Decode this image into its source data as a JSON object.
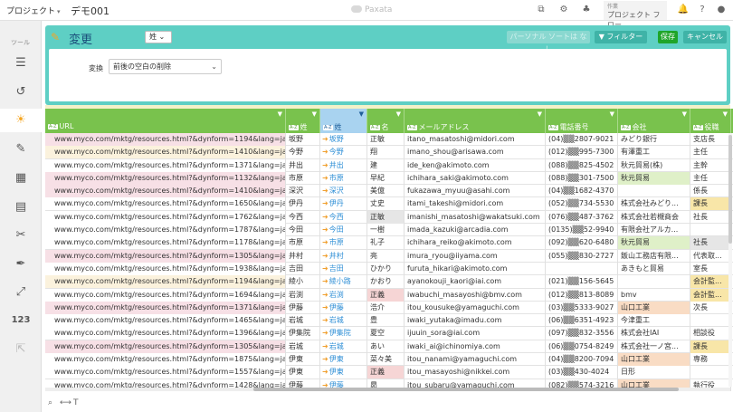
{
  "topbar": {
    "project": "プロジェクト",
    "app_name": "デモ001",
    "logo": "Paxata",
    "flow_sub": "作業",
    "flow_label": "プロジェクト フロー"
  },
  "sidebar": {
    "tools_label": "ツール",
    "numeric_label": "123"
  },
  "panel": {
    "title": "変更",
    "column_select": "姓",
    "personal_sort": "パーソナル ソートは なし",
    "filter": "フィルター",
    "save": "保存",
    "cancel": "キャンセル",
    "conversion_label": "変換",
    "conversion_value": "前後の空白の削除"
  },
  "columns": [
    {
      "tag": "A-Z",
      "label": "URL"
    },
    {
      "tag": "A-Z",
      "label": "姓"
    },
    {
      "tag": "A-Z",
      "label": "姓"
    },
    {
      "tag": "A-Z",
      "label": "名"
    },
    {
      "tag": "A-Z",
      "label": "メールアドレス"
    },
    {
      "tag": "A-Z",
      "label": "電話番号"
    },
    {
      "tag": "A-Z",
      "label": "会社"
    },
    {
      "tag": "A-Z",
      "label": "役職"
    }
  ],
  "rows": [
    {
      "url": "www.myco.com/mktg/resources.html?&dynform=1194&lang=ja",
      "last": "坂野",
      "kana": "坂野",
      "first": "正敏",
      "mail": "itano_masatoshi@midori.com",
      "tel": "(04)▒▒2807-9021",
      "comp": "みどり銀行",
      "role": "支店長",
      "uc": "pink",
      "hf": "",
      "hc": "",
      "hr": ""
    },
    {
      "url": "www.myco.com/mktg/resources.html?&dynform=1410&lang=ja",
      "last": "今野",
      "kana": "今野",
      "first": "翔",
      "mail": "imano_shou@arisawa.com",
      "tel": "(012)▒▒995-7300",
      "comp": "有澤重工",
      "role": "主任",
      "uc": "beige",
      "hf": "",
      "hc": "",
      "hr": ""
    },
    {
      "url": "www.myco.com/mktg/resources.html?&dynform=1371&lang=ja",
      "last": "井出",
      "kana": "井出",
      "first": "建",
      "mail": "ide_ken@akimoto.com",
      "tel": "(088)▒▒825-4502",
      "comp": "秋元貿易(株)",
      "role": "主幹",
      "uc": "white",
      "hf": "",
      "hc": "",
      "hr": ""
    },
    {
      "url": "www.myco.com/mktg/resources.html?&dynform=1132&lang=ja",
      "last": "市原",
      "kana": "市原",
      "first": "早紀",
      "mail": "ichihara_saki@akimoto.com",
      "tel": "(088)▒▒301-7500",
      "comp": "秋元貿易",
      "role": "主任",
      "uc": "pink",
      "hf": "",
      "hc": "g",
      "hr": ""
    },
    {
      "url": "www.myco.com/mktg/resources.html?&dynform=1410&lang=ja",
      "last": "深沢",
      "kana": "深沢",
      "first": "美億",
      "mail": "fukazawa_myuu@asahi.com",
      "tel": "(04)▒▒1682-4370",
      "comp": "",
      "role": "係長",
      "uc": "pink",
      "hf": "",
      "hc": "",
      "hr": ""
    },
    {
      "url": "www.myco.com/mktg/resources.html?&dynform=1650&lang=ja",
      "last": "伊丹",
      "kana": "伊丹",
      "first": "丈史",
      "mail": "itami_takeshi@midori.com",
      "tel": "(052)▒▒734-5530",
      "comp": "株式会社みどり...",
      "role": "課長",
      "uc": "white",
      "hf": "",
      "hc": "",
      "hr": "y"
    },
    {
      "url": "www.myco.com/mktg/resources.html?&dynform=1762&lang=ja",
      "last": "今西",
      "kana": "今西",
      "first": "正敏",
      "mail": "imanishi_masatoshi@wakatsuki.com",
      "tel": "(076)▒▒487-3762",
      "comp": "株式会社若槻商会",
      "role": "社長",
      "uc": "white",
      "hf": "gr",
      "hc": "",
      "hr": ""
    },
    {
      "url": "www.myco.com/mktg/resources.html?&dynform=1787&lang=ja",
      "last": "今田",
      "kana": "今田",
      "first": "一樹",
      "mail": "imada_kazuki@arcadia.com",
      "tel": "(0135)▒▒52-9940",
      "comp": "有限会社アルカ...",
      "role": "",
      "uc": "white",
      "hf": "",
      "hc": "",
      "hr": ""
    },
    {
      "url": "www.myco.com/mktg/resources.html?&dynform=1178&lang=ja",
      "last": "市原",
      "kana": "市原",
      "first": "礼子",
      "mail": "ichihara_reiko@akimoto.com",
      "tel": "(092)▒▒620-6480",
      "comp": "秋元貿易",
      "role": "社長",
      "uc": "white",
      "hf": "",
      "hc": "g",
      "hr": "gr"
    },
    {
      "url": "www.myco.com/mktg/resources.html?&dynform=1305&lang=ja",
      "last": "井村",
      "kana": "井村",
      "first": "亮",
      "mail": "imura_ryou@iiyama.com",
      "tel": "(055)▒▒830-2727",
      "comp": "飯山工務店有限...",
      "role": "代表取...",
      "uc": "pink",
      "hf": "",
      "hc": "",
      "hr": ""
    },
    {
      "url": "www.myco.com/mktg/resources.html?&dynform=1938&lang=ja",
      "last": "吉田",
      "kana": "吉田",
      "first": "ひかり",
      "mail": "furuta_hikari@akimoto.com",
      "tel": "",
      "comp": "あきもと貿易",
      "role": "室長",
      "uc": "white",
      "hf": "",
      "hc": "",
      "hr": ""
    },
    {
      "url": "www.myco.com/mktg/resources.html?&dynform=1194&lang=ja",
      "last": "綾小",
      "kana": "綾小路",
      "first": "かおり",
      "mail": "ayanokouji_kaori@iai.com",
      "tel": "(021)▒▒156-5645",
      "comp": "",
      "role": "会計監...",
      "uc": "beige",
      "hf": "",
      "hc": "",
      "hr": "y"
    },
    {
      "url": "www.myco.com/mktg/resources.html?&dynform=1694&lang=ja",
      "last": "岩渕",
      "kana": "岩渕",
      "first": "正義",
      "mail": "iwabuchi_masayoshi@bmv.com",
      "tel": "(012)▒▒813-8089",
      "comp": "bmv",
      "role": "会計監...",
      "uc": "white",
      "hf": "p",
      "hc": "",
      "hr": "y"
    },
    {
      "url": "www.myco.com/mktg/resources.html?&dynform=1371&lang=ja",
      "last": "伊藤",
      "kana": "伊藤",
      "first": "浩介",
      "mail": "itou_kousuke@yamaguchi.com",
      "tel": "(03)▒▒5333-9027",
      "comp": "山口工業",
      "role": "次長",
      "uc": "pink",
      "hf": "",
      "hc": "o",
      "hr": ""
    },
    {
      "url": "www.myco.com/mktg/resources.html?&dynform=1465&lang=ja",
      "last": "岩城",
      "kana": "岩城",
      "first": "豊",
      "mail": "iwaki_yutaka@imadu.com",
      "tel": "(06)▒▒6351-4923",
      "comp": "今津重工",
      "role": "",
      "uc": "white",
      "hf": "",
      "hc": "",
      "hr": ""
    },
    {
      "url": "www.myco.com/mktg/resources.html?&dynform=1396&lang=ja",
      "last": "伊集院",
      "kana": "伊集院",
      "first": "夏空",
      "mail": "ijuuin_sora@iai.com",
      "tel": "(097)▒▒832-3556",
      "comp": "株式会社IAI",
      "role": "相談役",
      "uc": "white",
      "hf": "",
      "hc": "",
      "hr": ""
    },
    {
      "url": "www.myco.com/mktg/resources.html?&dynform=1305&lang=ja",
      "last": "岩城",
      "kana": "岩城",
      "first": "あい",
      "mail": "iwaki_ai@ichinomiya.com",
      "tel": "(06)▒▒0754-8249",
      "comp": "株式会社一ノ宮...",
      "role": "課長",
      "uc": "pink",
      "hf": "",
      "hc": "",
      "hr": "y"
    },
    {
      "url": "www.myco.com/mktg/resources.html?&dynform=1875&lang=ja",
      "last": "伊東",
      "kana": "伊東",
      "first": "菜々美",
      "mail": "itou_nanami@yamaguchi.com",
      "tel": "(04)▒▒8200-7094",
      "comp": "山口工業",
      "role": "専務",
      "uc": "white",
      "hf": "",
      "hc": "o",
      "hr": ""
    },
    {
      "url": "www.myco.com/mktg/resources.html?&dynform=1557&lang=ja",
      "last": "伊東",
      "kana": "伊東",
      "first": "正義",
      "mail": "itou_masayoshi@nikkei.com",
      "tel": "(03)▒▒430-4024",
      "comp": "日形",
      "role": "",
      "uc": "white",
      "hf": "p",
      "hc": "",
      "hr": ""
    },
    {
      "url": "www.myco.com/mktg/resources.html?&dynform=1428&lang=ja",
      "last": "伊藤",
      "kana": "伊藤",
      "first": "昴",
      "mail": "itou_subaru@yamaguchi.com",
      "tel": "(082)▒▒574-3216",
      "comp": "山口工業",
      "role": "執行役",
      "uc": "white",
      "hf": "",
      "hc": "o",
      "hr": ""
    }
  ],
  "colors": {
    "header_green": "#79c24d",
    "panel_teal": "#5ecfc4",
    "accent_orange": "#f5a623",
    "save_green": "#1fa52a"
  }
}
